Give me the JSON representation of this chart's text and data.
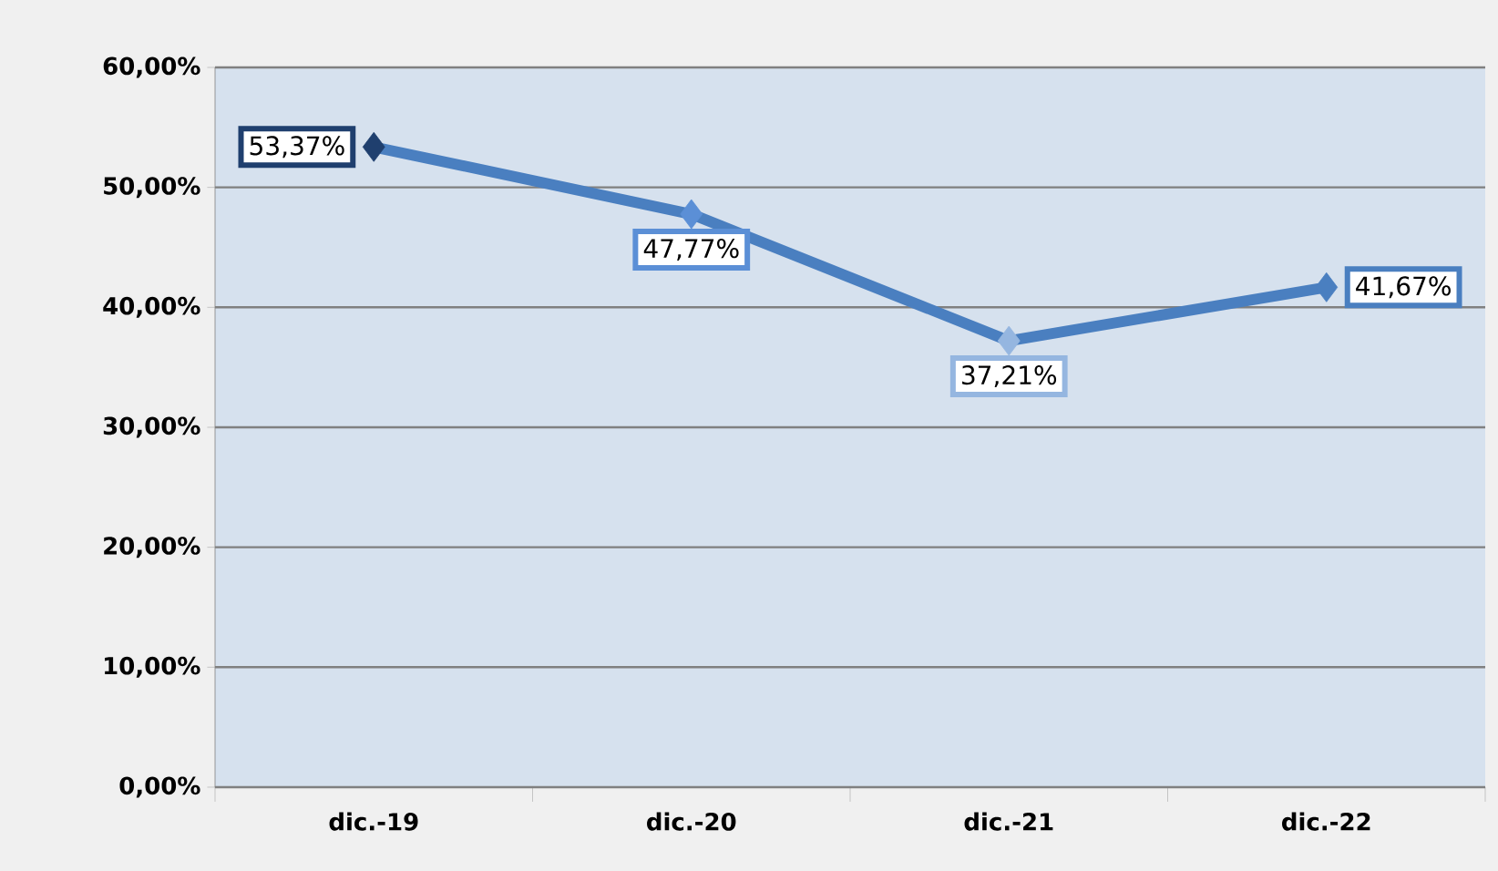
{
  "chart_data": {
    "type": "line",
    "categories": [
      "dic.-19",
      "dic.-20",
      "dic.-21",
      "dic.-22"
    ],
    "values": [
      53.37,
      47.77,
      37.21,
      41.67
    ],
    "value_labels": [
      "53,37%",
      "47,77%",
      "37,21%",
      "41,67%"
    ],
    "color": "#4a7fc0",
    "colors": [
      "#1f3f6e",
      "#5b8fd6",
      "#95b6e0",
      "#4a7fc0"
    ],
    "ylim": [
      0,
      60
    ],
    "yticks": [
      {
        "value": 0,
        "label": "0,00%"
      },
      {
        "value": 10,
        "label": "10,00%"
      },
      {
        "value": 20,
        "label": "20,00%"
      },
      {
        "value": 30,
        "label": "30,00%"
      },
      {
        "value": 40,
        "label": "40,00%"
      },
      {
        "value": 50,
        "label": "50,00%"
      },
      {
        "value": 60,
        "label": "60,00%"
      }
    ],
    "grid": "y",
    "marker": "diamond",
    "line_style": "solid"
  }
}
